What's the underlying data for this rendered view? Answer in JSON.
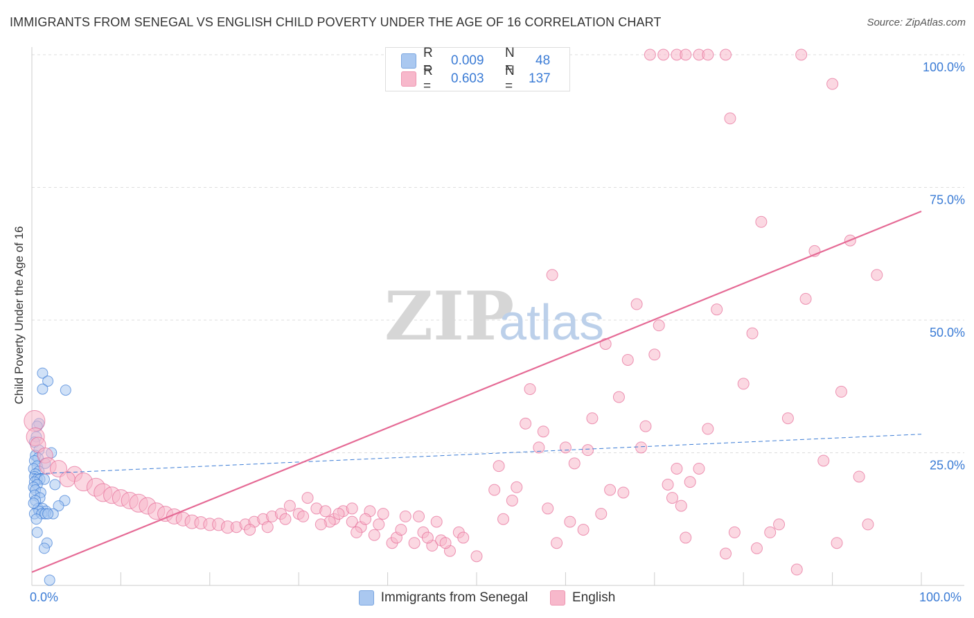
{
  "header": {
    "title": "IMMIGRANTS FROM SENEGAL VS ENGLISH CHILD POVERTY UNDER THE AGE OF 16 CORRELATION CHART",
    "source": "Source: ZipAtlas.com"
  },
  "watermark": {
    "zip": "ZIP",
    "atlas": "atlas"
  },
  "legend": {
    "rows": [
      {
        "r_label": "R =",
        "r_value": "0.009",
        "n_label": "N =",
        "n_value": "48",
        "color": "#aac8f0"
      },
      {
        "r_label": "R =",
        "r_value": "0.603",
        "n_label": "N =",
        "n_value": "137",
        "color": "#f7b8cb"
      }
    ]
  },
  "chart_data": {
    "type": "scatter",
    "title": "IMMIGRANTS FROM SENEGAL VS ENGLISH CHILD POVERTY UNDER THE AGE OF 16 CORRELATION CHART",
    "xlabel": "",
    "ylabel": "Child Poverty Under the Age of 16",
    "xlim": [
      0,
      100
    ],
    "ylim": [
      0,
      100
    ],
    "x_tick_labels": [
      "0.0%",
      "100.0%"
    ],
    "y_ticks": [
      25,
      50,
      75,
      100
    ],
    "y_tick_labels": [
      "25.0%",
      "50.0%",
      "75.0%",
      "100.0%"
    ],
    "grid": true,
    "series": [
      {
        "name": "Immigrants from Senegal",
        "color": "#3a7bd5",
        "fill": "#aac8f0",
        "trend": {
          "x0": 0,
          "y0": 21.0,
          "x1": 100,
          "y1": 28.5,
          "style": "dashed"
        },
        "points": [
          [
            1.2,
            40.0
          ],
          [
            1.8,
            38.5
          ],
          [
            1.2,
            37.0
          ],
          [
            3.8,
            36.8
          ],
          [
            0.8,
            30.5
          ],
          [
            0.6,
            30.0
          ],
          [
            0.5,
            28.0
          ],
          [
            0.3,
            27.0
          ],
          [
            0.8,
            25.5
          ],
          [
            2.2,
            25.0
          ],
          [
            0.4,
            24.5
          ],
          [
            0.7,
            24.0
          ],
          [
            0.3,
            23.5
          ],
          [
            1.5,
            23.0
          ],
          [
            0.6,
            22.5
          ],
          [
            0.2,
            22.0
          ],
          [
            0.8,
            21.5
          ],
          [
            0.4,
            21.0
          ],
          [
            0.3,
            20.5
          ],
          [
            0.6,
            20.0
          ],
          [
            0.9,
            20.0
          ],
          [
            1.4,
            20.0
          ],
          [
            0.3,
            19.5
          ],
          [
            0.6,
            19.0
          ],
          [
            2.6,
            19.0
          ],
          [
            0.2,
            18.5
          ],
          [
            0.4,
            18.0
          ],
          [
            1.0,
            17.5
          ],
          [
            0.3,
            17.0
          ],
          [
            0.9,
            16.5
          ],
          [
            0.4,
            16.0
          ],
          [
            3.7,
            16.0
          ],
          [
            3.0,
            15.0
          ],
          [
            0.7,
            14.5
          ],
          [
            1.2,
            14.5
          ],
          [
            1.6,
            14.0
          ],
          [
            0.8,
            14.0
          ],
          [
            0.3,
            13.5
          ],
          [
            1.1,
            13.5
          ],
          [
            1.5,
            13.5
          ],
          [
            2.4,
            13.5
          ],
          [
            1.8,
            13.5
          ],
          [
            0.6,
            10.0
          ],
          [
            0.5,
            12.5
          ],
          [
            1.7,
            8.0
          ],
          [
            1.4,
            7.0
          ],
          [
            2.0,
            1.0
          ],
          [
            0.2,
            15.5
          ]
        ]
      },
      {
        "name": "English",
        "color": "#e56a95",
        "fill": "#f7b8cb",
        "trend": {
          "x0": 0,
          "y0": 2.5,
          "x1": 100,
          "y1": 70.5,
          "style": "solid"
        },
        "points": [
          [
            0.3,
            31.0,
            26
          ],
          [
            0.4,
            28.0,
            22
          ],
          [
            0.7,
            26.5,
            18
          ],
          [
            1.5,
            24.5,
            18
          ],
          [
            1.8,
            22.5,
            20
          ],
          [
            3.0,
            22.0,
            20
          ],
          [
            4.8,
            21.0,
            18
          ],
          [
            4.0,
            20.0,
            18
          ],
          [
            5.8,
            19.5,
            22
          ],
          [
            7.2,
            18.5,
            22
          ],
          [
            8.0,
            17.5,
            22
          ],
          [
            9.0,
            17.0,
            20
          ],
          [
            10.0,
            16.5,
            20
          ],
          [
            11.0,
            16.0,
            20
          ],
          [
            12.0,
            15.5,
            22
          ],
          [
            13.0,
            15.0,
            20
          ],
          [
            14.0,
            14.0,
            20
          ],
          [
            15.0,
            13.5,
            18
          ],
          [
            16.0,
            13.0,
            18
          ],
          [
            17.0,
            12.5,
            16
          ],
          [
            18.0,
            12.0,
            16
          ],
          [
            19.0,
            11.8,
            14
          ],
          [
            20.0,
            11.5,
            14
          ],
          [
            21.0,
            11.5,
            14
          ],
          [
            22.0,
            11.0,
            14
          ],
          [
            23.0,
            11.0,
            12
          ],
          [
            24.0,
            11.5,
            12
          ],
          [
            25.0,
            12.0,
            12
          ],
          [
            26.0,
            12.5,
            12
          ],
          [
            27.0,
            13.0,
            12
          ],
          [
            28.0,
            13.5,
            12
          ],
          [
            29.0,
            15.0,
            12
          ],
          [
            30.0,
            13.5,
            12
          ],
          [
            31.0,
            16.5,
            12
          ],
          [
            32.0,
            14.5,
            12
          ],
          [
            33.0,
            14.0,
            12
          ],
          [
            34.0,
            12.5,
            12
          ],
          [
            35.0,
            14.0,
            12
          ],
          [
            36.0,
            12.0,
            12
          ],
          [
            37.0,
            11.0,
            12
          ],
          [
            38.0,
            14.0,
            12
          ],
          [
            39.5,
            13.5,
            12
          ],
          [
            40.5,
            8.0,
            12
          ],
          [
            41.0,
            9.0,
            12
          ],
          [
            42.0,
            13.0,
            12
          ],
          [
            43.0,
            8.0,
            12
          ],
          [
            44.0,
            10.0,
            12
          ],
          [
            45.0,
            7.5,
            12
          ],
          [
            46.0,
            8.5,
            12
          ],
          [
            47.0,
            6.5,
            12
          ],
          [
            48.0,
            10.0,
            12
          ],
          [
            50.0,
            5.5,
            12
          ],
          [
            52.0,
            18.0,
            12
          ],
          [
            53.0,
            12.5,
            12
          ],
          [
            54.0,
            16.0,
            12
          ],
          [
            55.5,
            30.5,
            12
          ],
          [
            56.0,
            37.0,
            12
          ],
          [
            57.0,
            26.0,
            12
          ],
          [
            58.0,
            14.5,
            12
          ],
          [
            58.5,
            58.5,
            12
          ],
          [
            59.0,
            8.0,
            12
          ],
          [
            60.0,
            26.0,
            12
          ],
          [
            61.0,
            23.0,
            12
          ],
          [
            62.0,
            10.5,
            12
          ],
          [
            63.0,
            31.5,
            12
          ],
          [
            64.5,
            45.5,
            12
          ],
          [
            65.0,
            18.0,
            12
          ],
          [
            66.0,
            35.5,
            12
          ],
          [
            67.0,
            42.5,
            12
          ],
          [
            68.0,
            53.0,
            12
          ],
          [
            69.0,
            30.0,
            12
          ],
          [
            70.0,
            43.5,
            12
          ],
          [
            70.5,
            49.0,
            12
          ],
          [
            72.0,
            16.5,
            12
          ],
          [
            72.5,
            22.0,
            12
          ],
          [
            73.5,
            9.0,
            12
          ],
          [
            74.0,
            19.5,
            12
          ],
          [
            75.0,
            22.0,
            12
          ],
          [
            76.0,
            29.5,
            12
          ],
          [
            77.0,
            52.0,
            12
          ],
          [
            78.0,
            6.0,
            12
          ],
          [
            78.5,
            88.0,
            12
          ],
          [
            80.0,
            38.0,
            12
          ],
          [
            81.0,
            47.5,
            12
          ],
          [
            82.0,
            68.5,
            12
          ],
          [
            83.0,
            10.0,
            12
          ],
          [
            84.0,
            11.5,
            12
          ],
          [
            85.0,
            31.5,
            12
          ],
          [
            86.0,
            3.0,
            12
          ],
          [
            87.0,
            54.0,
            12
          ],
          [
            88.0,
            63.0,
            12
          ],
          [
            89.0,
            23.5,
            12
          ],
          [
            90.0,
            94.5,
            12
          ],
          [
            91.0,
            36.5,
            12
          ],
          [
            92.0,
            65.0,
            12
          ],
          [
            93.0,
            20.5,
            12
          ],
          [
            94.0,
            11.5,
            12
          ],
          [
            95.0,
            58.5,
            12
          ],
          [
            69.5,
            100.0,
            12
          ],
          [
            71.0,
            100.0,
            12
          ],
          [
            72.5,
            100.0,
            12
          ],
          [
            73.5,
            100.0,
            12
          ],
          [
            75.0,
            100.0,
            12
          ],
          [
            76.0,
            100.0,
            12
          ],
          [
            78.0,
            100.0,
            12
          ],
          [
            86.5,
            100.0,
            12
          ],
          [
            33.5,
            12.0,
            12
          ],
          [
            36.5,
            10.0,
            12
          ],
          [
            38.5,
            9.5,
            12
          ],
          [
            44.5,
            9.0,
            12
          ],
          [
            46.5,
            8.0,
            12
          ],
          [
            48.5,
            9.0,
            12
          ],
          [
            52.5,
            22.5,
            12
          ],
          [
            54.5,
            18.5,
            12
          ],
          [
            57.5,
            29.0,
            12
          ],
          [
            60.5,
            12.0,
            12
          ],
          [
            62.5,
            25.5,
            12
          ],
          [
            64.0,
            13.5,
            12
          ],
          [
            66.5,
            17.5,
            12
          ],
          [
            68.5,
            26.0,
            12
          ],
          [
            71.5,
            19.0,
            12
          ],
          [
            73.0,
            15.0,
            12
          ],
          [
            79.0,
            10.0,
            12
          ],
          [
            81.5,
            7.0,
            12
          ],
          [
            90.5,
            8.0,
            12
          ],
          [
            24.5,
            10.5,
            12
          ],
          [
            26.5,
            11.0,
            12
          ],
          [
            28.5,
            12.5,
            12
          ],
          [
            30.5,
            13.0,
            12
          ],
          [
            32.5,
            11.5,
            12
          ],
          [
            34.5,
            13.5,
            12
          ],
          [
            36.0,
            14.5,
            12
          ],
          [
            37.5,
            12.5,
            12
          ],
          [
            39.0,
            11.5,
            12
          ],
          [
            41.5,
            10.5,
            12
          ],
          [
            43.5,
            13.0,
            12
          ],
          [
            45.5,
            12.0,
            12
          ]
        ]
      }
    ]
  },
  "bottom_legend": {
    "items": [
      {
        "label": "Immigrants from Senegal",
        "color": "#aac8f0"
      },
      {
        "label": "English",
        "color": "#f7b8cb"
      }
    ]
  }
}
